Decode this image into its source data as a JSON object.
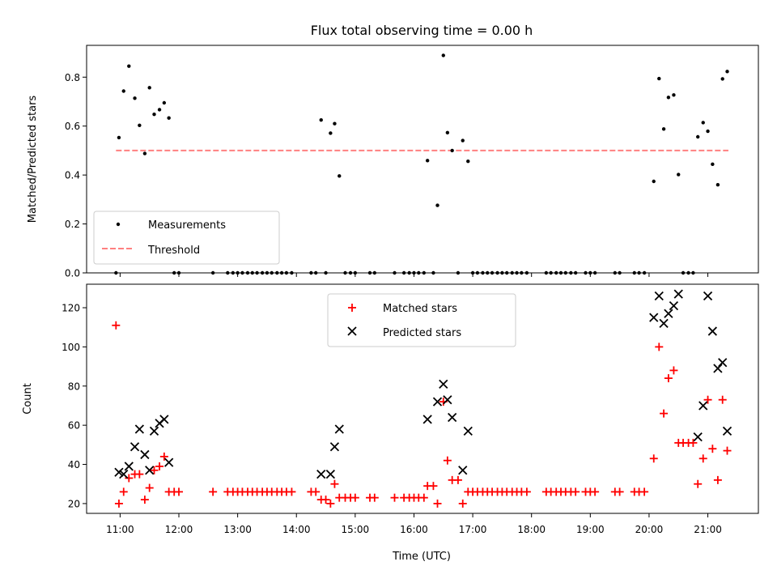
{
  "title": "Flux total observing time = 0.00 h",
  "xlabel": "Time (UTC)",
  "xticks": [
    "11:00",
    "12:00",
    "13:00",
    "14:00",
    "15:00",
    "16:00",
    "17:00",
    "18:00",
    "19:00",
    "20:00",
    "21:00"
  ],
  "chart_data": [
    {
      "type": "scatter",
      "ylabel": "Matched/Predicted stars",
      "ylim": [
        0,
        0.93
      ],
      "yticks": [
        "0.0",
        "0.2",
        "0.4",
        "0.6",
        "0.8"
      ],
      "legend_position": "lower-left",
      "threshold": {
        "name": "Threshold",
        "value": 0.5,
        "x_range": [
          10.93,
          21.35
        ],
        "color": "#ff8080"
      },
      "series": [
        {
          "name": "Measurements",
          "color": "#000000",
          "points": [
            [
              10.93,
              0.0
            ],
            [
              10.98,
              0.553
            ],
            [
              11.06,
              0.743
            ],
            [
              11.15,
              0.845
            ],
            [
              11.25,
              0.714
            ],
            [
              11.33,
              0.603
            ],
            [
              11.42,
              0.488
            ],
            [
              11.5,
              0.757
            ],
            [
              11.58,
              0.648
            ],
            [
              11.67,
              0.667
            ],
            [
              11.75,
              0.695
            ],
            [
              11.83,
              0.633
            ],
            [
              11.92,
              0.0
            ],
            [
              12.0,
              0.0
            ],
            [
              12.58,
              0.0
            ],
            [
              12.83,
              0.0
            ],
            [
              12.92,
              0.0
            ],
            [
              13.0,
              0.0
            ],
            [
              13.08,
              0.0
            ],
            [
              13.17,
              0.0
            ],
            [
              13.25,
              0.0
            ],
            [
              13.33,
              0.0
            ],
            [
              13.42,
              0.0
            ],
            [
              13.5,
              0.0
            ],
            [
              13.58,
              0.0
            ],
            [
              13.67,
              0.0
            ],
            [
              13.75,
              0.0
            ],
            [
              13.83,
              0.0
            ],
            [
              13.92,
              0.0
            ],
            [
              14.25,
              0.0
            ],
            [
              14.33,
              0.0
            ],
            [
              14.42,
              0.625
            ],
            [
              14.5,
              0.0
            ],
            [
              14.58,
              0.571
            ],
            [
              14.65,
              0.61
            ],
            [
              14.73,
              0.396
            ],
            [
              14.83,
              0.0
            ],
            [
              14.92,
              0.0
            ],
            [
              15.0,
              0.0
            ],
            [
              15.25,
              0.0
            ],
            [
              15.33,
              0.0
            ],
            [
              15.67,
              0.0
            ],
            [
              15.83,
              0.0
            ],
            [
              15.92,
              0.0
            ],
            [
              16.0,
              0.0
            ],
            [
              16.08,
              0.0
            ],
            [
              16.17,
              0.0
            ],
            [
              16.23,
              0.459
            ],
            [
              16.33,
              0.0
            ],
            [
              16.4,
              0.276
            ],
            [
              16.5,
              0.889
            ],
            [
              16.57,
              0.573
            ],
            [
              16.65,
              0.5
            ],
            [
              16.75,
              0.0
            ],
            [
              16.83,
              0.541
            ],
            [
              16.92,
              0.456
            ],
            [
              17.0,
              0.0
            ],
            [
              17.08,
              0.0
            ],
            [
              17.17,
              0.0
            ],
            [
              17.25,
              0.0
            ],
            [
              17.33,
              0.0
            ],
            [
              17.42,
              0.0
            ],
            [
              17.5,
              0.0
            ],
            [
              17.58,
              0.0
            ],
            [
              17.67,
              0.0
            ],
            [
              17.75,
              0.0
            ],
            [
              17.83,
              0.0
            ],
            [
              17.92,
              0.0
            ],
            [
              18.25,
              0.0
            ],
            [
              18.33,
              0.0
            ],
            [
              18.42,
              0.0
            ],
            [
              18.5,
              0.0
            ],
            [
              18.58,
              0.0
            ],
            [
              18.67,
              0.0
            ],
            [
              18.75,
              0.0
            ],
            [
              18.92,
              0.0
            ],
            [
              19.0,
              0.0
            ],
            [
              19.08,
              0.0
            ],
            [
              19.42,
              0.0
            ],
            [
              19.5,
              0.0
            ],
            [
              19.75,
              0.0
            ],
            [
              19.83,
              0.0
            ],
            [
              19.92,
              0.0
            ],
            [
              20.08,
              0.374
            ],
            [
              20.17,
              0.794
            ],
            [
              20.25,
              0.588
            ],
            [
              20.33,
              0.717
            ],
            [
              20.42,
              0.727
            ],
            [
              20.5,
              0.402
            ],
            [
              20.58,
              0.0
            ],
            [
              20.67,
              0.0
            ],
            [
              20.75,
              0.0
            ],
            [
              20.83,
              0.556
            ],
            [
              20.92,
              0.614
            ],
            [
              21.0,
              0.579
            ],
            [
              21.08,
              0.444
            ],
            [
              21.17,
              0.36
            ],
            [
              21.25,
              0.793
            ],
            [
              21.33,
              0.823
            ]
          ]
        }
      ]
    },
    {
      "type": "scatter",
      "ylabel": "Count",
      "ylim": [
        15,
        132
      ],
      "yticks": [
        "20",
        "40",
        "60",
        "80",
        "100",
        "120"
      ],
      "legend_position": "upper-center",
      "series": [
        {
          "name": "Matched stars",
          "color": "#ff0000",
          "marker": "plus",
          "points": [
            [
              10.93,
              111
            ],
            [
              10.98,
              20
            ],
            [
              11.06,
              26
            ],
            [
              11.15,
              33
            ],
            [
              11.25,
              35
            ],
            [
              11.33,
              35
            ],
            [
              11.42,
              22
            ],
            [
              11.5,
              28
            ],
            [
              11.58,
              37
            ],
            [
              11.67,
              39
            ],
            [
              11.75,
              44
            ],
            [
              11.83,
              26
            ],
            [
              11.92,
              26
            ],
            [
              12.0,
              26
            ],
            [
              12.58,
              26
            ],
            [
              12.83,
              26
            ],
            [
              12.92,
              26
            ],
            [
              13.0,
              26
            ],
            [
              13.08,
              26
            ],
            [
              13.17,
              26
            ],
            [
              13.25,
              26
            ],
            [
              13.33,
              26
            ],
            [
              13.42,
              26
            ],
            [
              13.5,
              26
            ],
            [
              13.58,
              26
            ],
            [
              13.67,
              26
            ],
            [
              13.75,
              26
            ],
            [
              13.83,
              26
            ],
            [
              13.92,
              26
            ],
            [
              14.25,
              26
            ],
            [
              14.33,
              26
            ],
            [
              14.42,
              22
            ],
            [
              14.5,
              22
            ],
            [
              14.58,
              20
            ],
            [
              14.65,
              30
            ],
            [
              14.73,
              23
            ],
            [
              14.83,
              23
            ],
            [
              14.92,
              23
            ],
            [
              15.0,
              23
            ],
            [
              15.25,
              23
            ],
            [
              15.33,
              23
            ],
            [
              15.67,
              23
            ],
            [
              15.83,
              23
            ],
            [
              15.92,
              23
            ],
            [
              16.0,
              23
            ],
            [
              16.08,
              23
            ],
            [
              16.17,
              23
            ],
            [
              16.23,
              29
            ],
            [
              16.33,
              29
            ],
            [
              16.4,
              20
            ],
            [
              16.5,
              72
            ],
            [
              16.57,
              42
            ],
            [
              16.65,
              32
            ],
            [
              16.75,
              32
            ],
            [
              16.83,
              20
            ],
            [
              16.92,
              26
            ],
            [
              17.0,
              26
            ],
            [
              17.08,
              26
            ],
            [
              17.17,
              26
            ],
            [
              17.25,
              26
            ],
            [
              17.33,
              26
            ],
            [
              17.42,
              26
            ],
            [
              17.5,
              26
            ],
            [
              17.58,
              26
            ],
            [
              17.67,
              26
            ],
            [
              17.75,
              26
            ],
            [
              17.83,
              26
            ],
            [
              17.92,
              26
            ],
            [
              18.25,
              26
            ],
            [
              18.33,
              26
            ],
            [
              18.42,
              26
            ],
            [
              18.5,
              26
            ],
            [
              18.58,
              26
            ],
            [
              18.67,
              26
            ],
            [
              18.75,
              26
            ],
            [
              18.92,
              26
            ],
            [
              19.0,
              26
            ],
            [
              19.08,
              26
            ],
            [
              19.42,
              26
            ],
            [
              19.5,
              26
            ],
            [
              19.75,
              26
            ],
            [
              19.83,
              26
            ],
            [
              19.92,
              26
            ],
            [
              20.08,
              43
            ],
            [
              20.17,
              100
            ],
            [
              20.25,
              66
            ],
            [
              20.33,
              84
            ],
            [
              20.42,
              88
            ],
            [
              20.5,
              51
            ],
            [
              20.58,
              51
            ],
            [
              20.67,
              51
            ],
            [
              20.75,
              51
            ],
            [
              20.83,
              30
            ],
            [
              20.92,
              43
            ],
            [
              21.0,
              73
            ],
            [
              21.08,
              48
            ],
            [
              21.17,
              32
            ],
            [
              21.25,
              73
            ],
            [
              21.33,
              47
            ]
          ]
        },
        {
          "name": "Predicted stars",
          "color": "#000000",
          "marker": "x",
          "points": [
            [
              10.98,
              36
            ],
            [
              11.06,
              35
            ],
            [
              11.15,
              39
            ],
            [
              11.25,
              49
            ],
            [
              11.33,
              58
            ],
            [
              11.42,
              45
            ],
            [
              11.5,
              37
            ],
            [
              11.58,
              57
            ],
            [
              11.67,
              61
            ],
            [
              11.75,
              63
            ],
            [
              11.83,
              41
            ],
            [
              14.42,
              35
            ],
            [
              14.58,
              35
            ],
            [
              14.65,
              49
            ],
            [
              14.73,
              58
            ],
            [
              16.23,
              63
            ],
            [
              16.4,
              72
            ],
            [
              16.5,
              81
            ],
            [
              16.57,
              73
            ],
            [
              16.65,
              64
            ],
            [
              16.83,
              37
            ],
            [
              16.92,
              57
            ],
            [
              20.08,
              115
            ],
            [
              20.17,
              126
            ],
            [
              20.25,
              112
            ],
            [
              20.33,
              117
            ],
            [
              20.42,
              121
            ],
            [
              20.5,
              127
            ],
            [
              20.83,
              54
            ],
            [
              20.92,
              70
            ],
            [
              21.0,
              126
            ],
            [
              21.08,
              108
            ],
            [
              21.17,
              89
            ],
            [
              21.25,
              92
            ],
            [
              21.33,
              57
            ]
          ]
        }
      ]
    }
  ]
}
